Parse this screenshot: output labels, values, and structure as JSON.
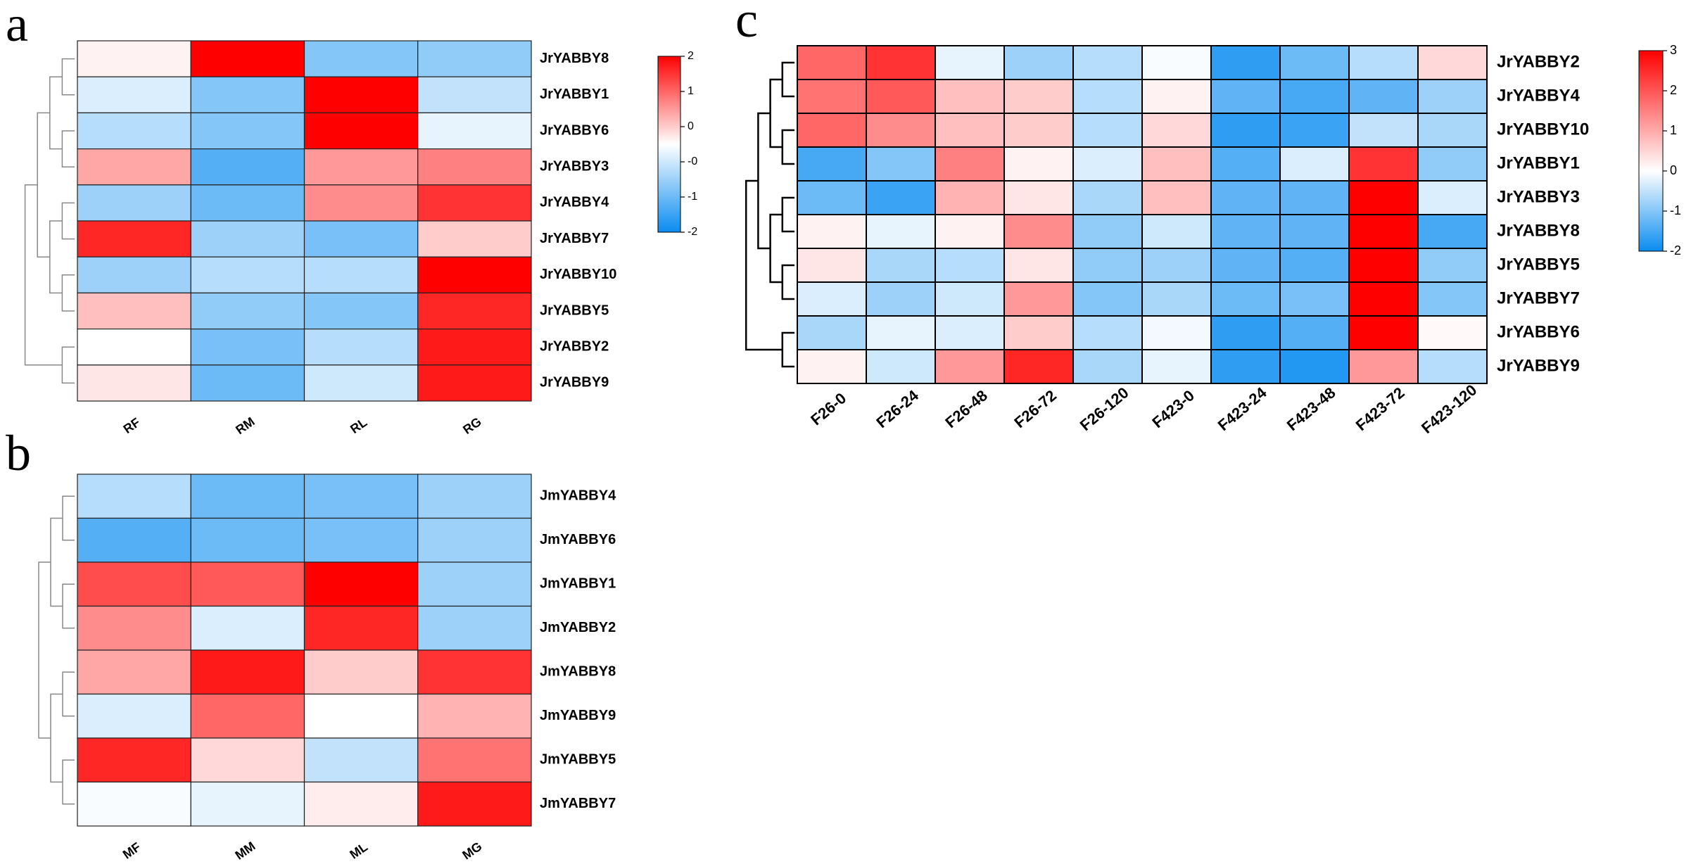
{
  "chart_data": [
    {
      "type": "heatmap",
      "panel_label": "a",
      "x": [
        "RF",
        "RM",
        "RL",
        "RG"
      ],
      "y": [
        "JrYABBY8",
        "JrYABBY1",
        "JrYABBY6",
        "JrYABBY3",
        "JrYABBY4",
        "JrYABBY7",
        "JrYABBY10",
        "JrYABBY5",
        "JrYABBY2",
        "JrYABBY9"
      ],
      "values": [
        [
          0.1,
          2.0,
          -1.0,
          -0.9
        ],
        [
          -0.3,
          -1.0,
          2.0,
          -0.5
        ],
        [
          -0.6,
          -1.0,
          2.0,
          -0.2
        ],
        [
          0.7,
          -1.4,
          0.8,
          1.0
        ],
        [
          -0.8,
          -1.2,
          0.9,
          1.6
        ],
        [
          1.7,
          -0.8,
          -1.1,
          0.4
        ],
        [
          -0.8,
          -0.6,
          -0.6,
          2.0
        ],
        [
          0.5,
          -0.9,
          -1.0,
          1.7
        ],
        [
          0.0,
          -1.1,
          -0.6,
          1.8
        ],
        [
          0.2,
          -1.2,
          -0.4,
          1.8
        ]
      ],
      "colorbar": {
        "min": -2,
        "max": 2,
        "ticks": [
          "2",
          "1",
          "0",
          "-0",
          "-1",
          "-2"
        ],
        "low_color": "#0a8cf0",
        "mid_color": "#ffffff",
        "high_color": "#ff0000"
      },
      "dendrogram_side": "left"
    },
    {
      "type": "heatmap",
      "panel_label": "b",
      "x": [
        "MF",
        "MM",
        "ML",
        "MG"
      ],
      "y": [
        "JmYABBY4",
        "JmYABBY6",
        "JmYABBY1",
        "JmYABBY2",
        "JmYABBY8",
        "JmYABBY9",
        "JmYABBY5",
        "JmYABBY7"
      ],
      "values": [
        [
          -0.6,
          -1.2,
          -1.1,
          -0.8
        ],
        [
          -1.4,
          -1.2,
          -1.1,
          -0.8
        ],
        [
          1.4,
          1.3,
          2.0,
          -0.8
        ],
        [
          0.9,
          -0.3,
          1.7,
          -0.8
        ],
        [
          0.7,
          1.8,
          0.4,
          1.6
        ],
        [
          -0.3,
          1.2,
          0.0,
          0.6
        ],
        [
          1.7,
          0.3,
          -0.5,
          1.1
        ],
        [
          -0.05,
          -0.2,
          0.15,
          1.8
        ]
      ],
      "colorbar": {
        "min": -2,
        "max": 2,
        "low_color": "#0a8cf0",
        "mid_color": "#ffffff",
        "high_color": "#ff0000"
      },
      "dendrogram_side": "left"
    },
    {
      "type": "heatmap",
      "panel_label": "c",
      "x": [
        "F26-0",
        "F26-24",
        "F26-48",
        "F26-72",
        "F26-120",
        "F423-0",
        "F423-24",
        "F423-48",
        "F423-72",
        "F423-120"
      ],
      "y": [
        "JrYABBY2",
        "JrYABBY4",
        "JrYABBY10",
        "JrYABBY1",
        "JrYABBY3",
        "JrYABBY8",
        "JrYABBY5",
        "JrYABBY7",
        "JrYABBY6",
        "JrYABBY9"
      ],
      "values": [
        [
          1.2,
          1.6,
          -0.2,
          -0.8,
          -0.6,
          -0.05,
          -1.7,
          -1.2,
          -0.6,
          0.3
        ],
        [
          1.1,
          1.3,
          0.5,
          0.4,
          -0.6,
          0.1,
          -1.3,
          -1.5,
          -1.3,
          -0.8
        ],
        [
          1.2,
          0.9,
          0.5,
          0.4,
          -0.6,
          0.3,
          -1.7,
          -1.6,
          -0.5,
          -0.7
        ],
        [
          -1.5,
          -1.0,
          1.0,
          0.1,
          -0.3,
          0.5,
          -1.4,
          -0.3,
          1.6,
          -0.9
        ],
        [
          -1.2,
          -1.6,
          0.6,
          0.2,
          -0.7,
          0.5,
          -1.3,
          -1.3,
          2.1,
          -0.3
        ],
        [
          0.1,
          -0.2,
          0.1,
          0.9,
          -0.9,
          -0.4,
          -1.3,
          -1.3,
          2.0,
          -1.5
        ],
        [
          0.2,
          -0.7,
          -0.6,
          0.2,
          -0.9,
          -0.8,
          -1.3,
          -1.4,
          3.0,
          -0.9
        ],
        [
          -0.3,
          -0.8,
          -0.4,
          0.8,
          -1.0,
          -0.7,
          -1.2,
          -1.1,
          3.0,
          -1.0
        ],
        [
          -0.7,
          -0.2,
          -0.3,
          0.4,
          -0.6,
          -0.1,
          -1.7,
          -1.4,
          2.0,
          0.05
        ],
        [
          0.1,
          -0.4,
          0.8,
          1.7,
          -0.7,
          -0.2,
          -1.7,
          -1.8,
          0.8,
          -0.6
        ]
      ],
      "colorbar": {
        "min": -2,
        "max": 3,
        "ticks": [
          "3",
          "2",
          "1",
          "0",
          "-1",
          "-2"
        ],
        "low_color": "#0a8cf0",
        "mid_color": "#ffffff",
        "high_color": "#ff0000"
      },
      "dendrogram_side": "left"
    }
  ]
}
